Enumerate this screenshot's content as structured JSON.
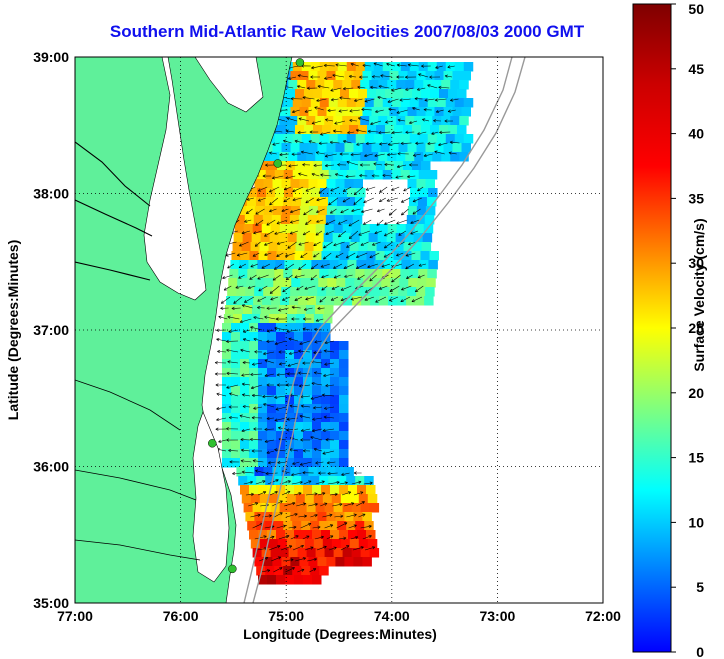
{
  "title": "Southern Mid-Atlantic Raw Velocities 2007/08/03 2000 GMT",
  "map": {
    "xlabel": "Longitude (Degrees:Minutes)",
    "ylabel": "Latitude (Degrees:Minutes)",
    "x_ticks": [
      "77:00",
      "76:00",
      "75:00",
      "74:00",
      "73:00",
      "72:00"
    ],
    "y_ticks": [
      "39:00",
      "38:00",
      "37:00",
      "36:00",
      "35:00"
    ],
    "lon_range": [
      -77,
      -72
    ],
    "lat_range": [
      35,
      39
    ],
    "grid": "dotted",
    "land_color": "#5ff09a",
    "bathymetry_color": "#999999",
    "arrow_color": "#000000",
    "station_marker_color": "#30c030"
  },
  "colorbar": {
    "label": "Surface Velocity (cm/s)",
    "ticks": [
      "50",
      "45",
      "40",
      "35",
      "30",
      "25",
      "20",
      "15",
      "10",
      "5",
      "0"
    ],
    "range": [
      0,
      50
    ],
    "colormap": "jet"
  },
  "stations": [
    {
      "lon": -74.87,
      "lat": 38.96
    },
    {
      "lon": -75.08,
      "lat": 38.22
    },
    {
      "lon": -75.7,
      "lat": 36.17
    },
    {
      "lon": -75.51,
      "lat": 35.25
    }
  ]
}
